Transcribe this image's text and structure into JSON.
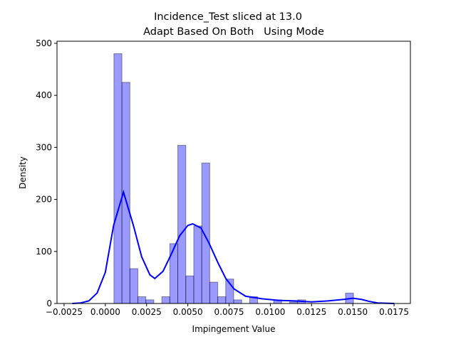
{
  "chart_data": {
    "type": "histogram",
    "title": "Incidence_Test sliced at 13.0",
    "subtitle": "Adapt Based On Both   Using Mode",
    "x_label": "Impingement Value",
    "y_label": "Density",
    "bins": [
      0.00052,
      0.001004,
      0.001488,
      0.001972,
      0.002456,
      0.00294,
      0.003424,
      0.003908,
      0.004392,
      0.004876,
      0.00536,
      0.005844,
      0.006328,
      0.006812,
      0.007296,
      0.00778,
      0.008264,
      0.008748,
      0.009232,
      0.009716,
      0.0102,
      0.010684,
      0.011168,
      0.011652,
      0.012136,
      0.01262,
      0.013104,
      0.013588,
      0.014072,
      0.014556,
      0.01504
    ],
    "counts": [
      480,
      425,
      67,
      13,
      7,
      0,
      13,
      115,
      304,
      53,
      149,
      270,
      41,
      13,
      47,
      7,
      0,
      13,
      0,
      0,
      7,
      0,
      3,
      7,
      0,
      0,
      0,
      0,
      0,
      20
    ],
    "color": "#0000ff",
    "kde": {
      "color": "#0000ff",
      "x": [
        -0.002,
        -0.0015,
        -0.001,
        -0.0005,
        0,
        0.0005,
        0.0011,
        0.0017,
        0.0022,
        0.0027,
        0.003,
        0.0035,
        0.004,
        0.0045,
        0.005,
        0.0053,
        0.0058,
        0.0063,
        0.0068,
        0.0073,
        0.0078,
        0.0085,
        0.0095,
        0.0105,
        0.0115,
        0.0125,
        0.0135,
        0.0145,
        0.015,
        0.0155,
        0.016,
        0.0165,
        0.0175
      ],
      "y": [
        0,
        1,
        5,
        20,
        60,
        150,
        214,
        150,
        90,
        55,
        48,
        62,
        95,
        130,
        150,
        153,
        145,
        115,
        80,
        48,
        28,
        14,
        9,
        6,
        5,
        3,
        5,
        8,
        10,
        8,
        4,
        1,
        0
      ]
    },
    "xlim": [
      -0.00293,
      0.01849
    ],
    "ylim": [
      0,
      504
    ],
    "xticks": [
      {
        "value": -0.0025,
        "label": "−0.0025"
      },
      {
        "value": 0,
        "label": "0.0000"
      },
      {
        "value": 0.0025,
        "label": "0.0025"
      },
      {
        "value": 0.005,
        "label": "0.0050"
      },
      {
        "value": 0.0075,
        "label": "0.0075"
      },
      {
        "value": 0.01,
        "label": "0.0100"
      },
      {
        "value": 0.0125,
        "label": "0.0125"
      },
      {
        "value": 0.015,
        "label": "0.0150"
      },
      {
        "value": 0.0175,
        "label": "0.0175"
      }
    ],
    "yticks": [
      0,
      100,
      200,
      300,
      400,
      500
    ]
  }
}
